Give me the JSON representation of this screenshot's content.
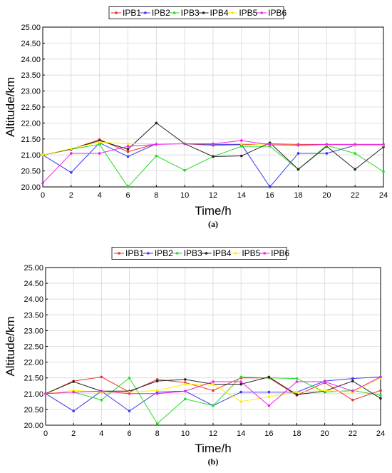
{
  "colors": {
    "IPB1": "#e8322b",
    "IPB2": "#3a3aee",
    "IPB3": "#22dd22",
    "IPB4": "#222222",
    "IPB5": "#ffee00",
    "IPB6": "#ee22ee"
  },
  "chart_data": [
    {
      "type": "line",
      "panel_label": "(a)",
      "xlabel": "Time/h",
      "ylabel": "Altitude/km",
      "xlim": [
        0,
        24
      ],
      "ylim": [
        20.0,
        25.0
      ],
      "xticks": [
        "0",
        "2",
        "4",
        "6",
        "8",
        "10",
        "12",
        "14",
        "16",
        "18",
        "20",
        "22",
        "24"
      ],
      "yticks": [
        "20.00",
        "20.50",
        "21.00",
        "21.50",
        "22.00",
        "22.50",
        "23.00",
        "23.50",
        "24.00",
        "24.50",
        "25.00"
      ],
      "grid": true,
      "legend_position": "top",
      "x": [
        0,
        2,
        4,
        6,
        8,
        10,
        12,
        14,
        16,
        18,
        20,
        22,
        24
      ],
      "series": [
        {
          "name": "IPB1",
          "color": "#e8322b",
          "values": [
            21.0,
            21.18,
            21.48,
            21.1,
            21.35,
            21.35,
            21.3,
            21.32,
            21.35,
            21.33,
            21.33,
            21.33,
            21.33
          ]
        },
        {
          "name": "IPB2",
          "color": "#3a3aee",
          "values": [
            21.0,
            20.45,
            21.38,
            20.95,
            21.35,
            21.35,
            21.33,
            21.33,
            20.0,
            21.05,
            21.05,
            21.3,
            21.3
          ]
        },
        {
          "name": "IPB3",
          "color": "#22dd22",
          "values": [
            21.0,
            21.18,
            21.33,
            20.0,
            20.97,
            20.52,
            20.95,
            21.27,
            21.27,
            20.55,
            21.3,
            21.05,
            20.48
          ]
        },
        {
          "name": "IPB4",
          "color": "#222222",
          "values": [
            21.0,
            21.18,
            21.45,
            21.18,
            22.0,
            21.35,
            20.95,
            20.97,
            21.38,
            20.55,
            21.27,
            20.55,
            21.25
          ]
        },
        {
          "name": "IPB5",
          "color": "#ffee00",
          "values": [
            21.0,
            21.2,
            21.4,
            21.35,
            21.35,
            21.35,
            21.35,
            21.35,
            21.33,
            21.3,
            21.3,
            21.3,
            21.3
          ]
        },
        {
          "name": "IPB6",
          "color": "#ee22ee",
          "values": [
            20.12,
            21.05,
            21.05,
            21.27,
            21.33,
            21.35,
            21.35,
            21.45,
            21.32,
            21.3,
            21.33,
            21.33,
            21.33
          ]
        }
      ]
    },
    {
      "type": "line",
      "panel_label": "(b)",
      "xlabel": "Time/h",
      "ylabel": "Altitude/km",
      "xlim": [
        0,
        24
      ],
      "ylim": [
        20.0,
        25.0
      ],
      "xticks": [
        "0",
        "2",
        "4",
        "6",
        "8",
        "10",
        "12",
        "14",
        "16",
        "18",
        "20",
        "22",
        "24"
      ],
      "yticks": [
        "20.00",
        "20.50",
        "21.00",
        "21.50",
        "22.00",
        "22.50",
        "23.00",
        "23.50",
        "24.00",
        "24.50",
        "25.00"
      ],
      "grid": true,
      "legend_position": "top",
      "x": [
        0,
        2,
        4,
        6,
        8,
        10,
        12,
        14,
        16,
        18,
        20,
        22,
        24
      ],
      "series": [
        {
          "name": "IPB1",
          "color": "#e8322b",
          "values": [
            21.0,
            21.4,
            21.53,
            21.05,
            21.45,
            21.35,
            21.1,
            21.5,
            21.5,
            20.95,
            21.35,
            20.8,
            21.1
          ]
        },
        {
          "name": "IPB2",
          "color": "#3a3aee",
          "values": [
            21.0,
            20.45,
            21.08,
            20.45,
            21.05,
            21.08,
            20.62,
            21.05,
            21.05,
            21.05,
            21.4,
            21.48,
            21.53
          ]
        },
        {
          "name": "IPB3",
          "color": "#22dd22",
          "values": [
            21.0,
            21.05,
            20.8,
            21.5,
            20.05,
            20.83,
            20.62,
            21.53,
            21.5,
            21.48,
            21.05,
            21.1,
            20.95
          ]
        },
        {
          "name": "IPB4",
          "color": "#222222",
          "values": [
            21.0,
            21.38,
            21.08,
            21.08,
            21.4,
            21.45,
            21.3,
            21.3,
            21.53,
            20.97,
            21.08,
            21.4,
            20.85
          ]
        },
        {
          "name": "IPB5",
          "color": "#ffee00",
          "values": [
            21.0,
            21.1,
            21.05,
            21.05,
            21.1,
            21.3,
            21.3,
            20.75,
            20.9,
            21.05,
            21.1,
            21.05,
            21.5
          ]
        },
        {
          "name": "IPB6",
          "color": "#ee22ee",
          "values": [
            21.0,
            21.05,
            21.08,
            21.0,
            21.0,
            21.08,
            21.38,
            21.38,
            20.62,
            21.38,
            21.38,
            21.08,
            21.53
          ]
        }
      ]
    }
  ]
}
